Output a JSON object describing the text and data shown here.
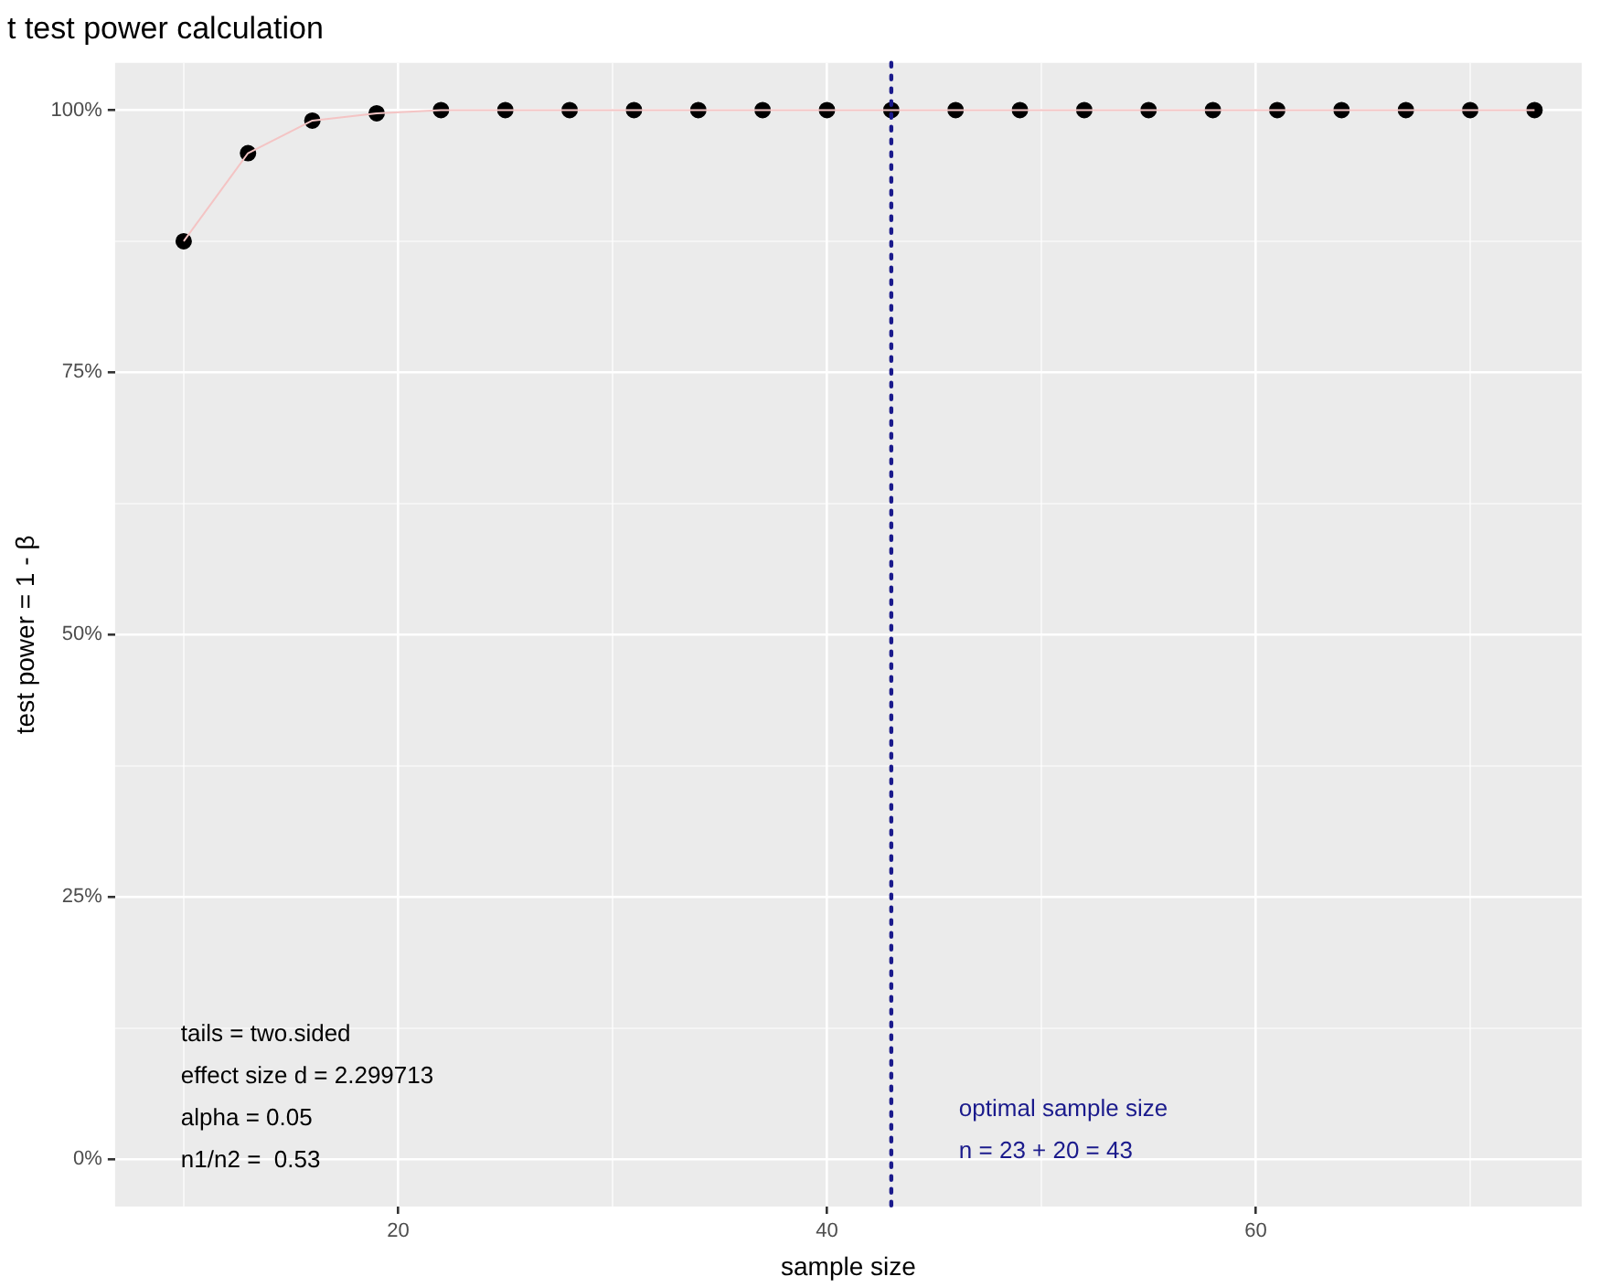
{
  "chart_data": {
    "type": "line",
    "title": "t test power calculation",
    "xlabel": "sample size",
    "ylabel": "test power = 1 - β",
    "x": [
      10,
      13,
      16,
      19,
      22,
      25,
      28,
      31,
      34,
      37,
      40,
      43,
      46,
      49,
      52,
      55,
      58,
      61,
      64,
      67,
      70,
      73
    ],
    "series": [
      {
        "type": "line",
        "marker": "none",
        "color": "#f4c4c4",
        "values": [
          87.5,
          95.9,
          99,
          99.7,
          100,
          100,
          100,
          100,
          100,
          100,
          100,
          100,
          100,
          100,
          100,
          100,
          100,
          100,
          100,
          100,
          100,
          100
        ]
      },
      {
        "type": "scatter",
        "marker": "circle",
        "color": "#000000",
        "values": [
          87.5,
          95.9,
          99,
          99.7,
          100,
          100,
          100,
          100,
          100,
          100,
          100,
          100,
          100,
          100,
          100,
          100,
          100,
          100,
          100,
          100,
          100,
          100
        ]
      }
    ],
    "xlim": [
      6.8,
      75.2
    ],
    "xticks": [
      {
        "value": 10,
        "label": null
      },
      20,
      {
        "value": 30,
        "label": null
      },
      40,
      {
        "value": 50,
        "label": null
      },
      60,
      {
        "value": 70,
        "label": null
      }
    ],
    "ylim": [
      -4.5,
      104.5
    ],
    "yticks": [
      {
        "value": 0,
        "label": "0%"
      },
      {
        "value": 12.5,
        "label": null
      },
      {
        "value": 25,
        "label": "25%"
      },
      {
        "value": 37.5,
        "label": null
      },
      {
        "value": 50,
        "label": "50%"
      },
      {
        "value": 62.5,
        "label": null
      },
      {
        "value": 75,
        "label": "75%"
      },
      {
        "value": 87.5,
        "label": null
      },
      {
        "value": 100,
        "label": "100%"
      }
    ],
    "ref_lines": [
      {
        "axis": "x",
        "value": 43,
        "label": "optimal sample size\nn = 23 + 20 = 43",
        "color": "#1a1a8c",
        "line_style": "dotted"
      }
    ],
    "annotations": [
      "tails = two.sided",
      "effect size d = 2.299713",
      "alpha = 0.05",
      "n1/n2 =  0.53"
    ],
    "grid": true,
    "legend": false
  }
}
